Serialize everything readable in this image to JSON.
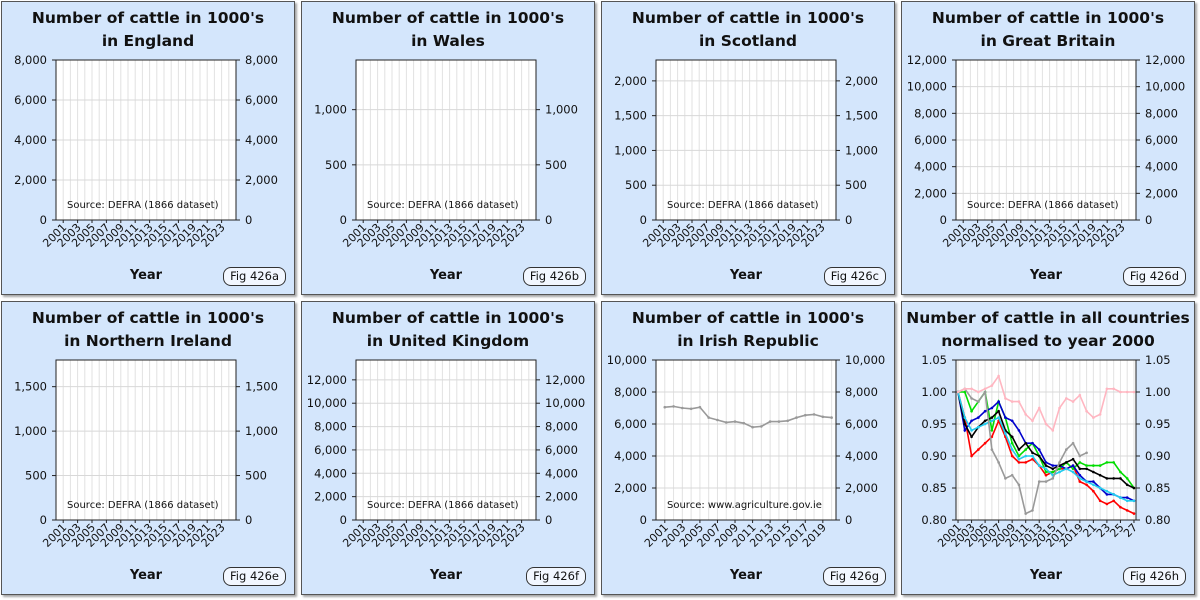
{
  "panels": [
    {
      "title": "Number of cattle in 1000's\nin England",
      "fig": "Fig 426a",
      "source": "Source: DEFRA (1866 dataset)",
      "xlabel": "Year",
      "chart_data": {
        "type": "line",
        "x_ticks": [
          "2001",
          "2003",
          "2005",
          "2007",
          "2009",
          "2011",
          "2013",
          "2015",
          "2017",
          "2019",
          "2021",
          "2023"
        ],
        "xlim": [
          2000,
          2025
        ],
        "ylim": [
          0,
          8000
        ],
        "y_ticks": [
          "0",
          "2,000",
          "4,000",
          "6,000",
          "8,000"
        ],
        "series": []
      }
    },
    {
      "title": "Number of cattle in 1000's\nin Wales",
      "fig": "Fig 426b",
      "source": "Source: DEFRA (1866 dataset)",
      "xlabel": "Year",
      "chart_data": {
        "type": "line",
        "x_ticks": [
          "2001",
          "2003",
          "2005",
          "2007",
          "2009",
          "2011",
          "2013",
          "2015",
          "2017",
          "2019",
          "2021",
          "2023"
        ],
        "xlim": [
          2000,
          2025
        ],
        "ylim": [
          0,
          1450
        ],
        "y_ticks": [
          "0",
          "500",
          "1,000"
        ],
        "series": []
      }
    },
    {
      "title": "Number of cattle in 1000's\nin Scotland",
      "fig": "Fig 426c",
      "source": "Source: DEFRA (1866 dataset)",
      "xlabel": "Year",
      "chart_data": {
        "type": "line",
        "x_ticks": [
          "2001",
          "2003",
          "2005",
          "2007",
          "2009",
          "2011",
          "2013",
          "2015",
          "2017",
          "2019",
          "2021",
          "2023"
        ],
        "xlim": [
          2000,
          2025
        ],
        "ylim": [
          0,
          2300
        ],
        "y_ticks": [
          "0",
          "500",
          "1,000",
          "1,500",
          "2,000"
        ],
        "series": []
      }
    },
    {
      "title": "Number of cattle in 1000's\nin Great Britain",
      "fig": "Fig 426d",
      "source": "Source: DEFRA (1866 dataset)",
      "xlabel": "Year",
      "chart_data": {
        "type": "line",
        "x_ticks": [
          "2001",
          "2003",
          "2005",
          "2007",
          "2009",
          "2011",
          "2013",
          "2015",
          "2017",
          "2019",
          "2021",
          "2023"
        ],
        "xlim": [
          2000,
          2025
        ],
        "ylim": [
          0,
          12000
        ],
        "y_ticks": [
          "0",
          "2,000",
          "4,000",
          "6,000",
          "8,000",
          "10,000",
          "12,000"
        ],
        "series": []
      }
    },
    {
      "title": "Number of cattle in 1000's\nin Northern Ireland",
      "fig": "Fig 426e",
      "source": "Source: DEFRA (1866 dataset)",
      "xlabel": "Year",
      "chart_data": {
        "type": "line",
        "x_ticks": [
          "2001",
          "2003",
          "2005",
          "2007",
          "2009",
          "2011",
          "2013",
          "2015",
          "2017",
          "2019",
          "2021",
          "2023"
        ],
        "xlim": [
          2000,
          2025
        ],
        "ylim": [
          0,
          1800
        ],
        "y_ticks": [
          "0",
          "500",
          "1,000",
          "1,500"
        ],
        "series": []
      }
    },
    {
      "title": "Number of cattle in 1000's\nin United Kingdom",
      "fig": "Fig 426f",
      "source": "Source: DEFRA (1866 dataset)",
      "xlabel": "Year",
      "chart_data": {
        "type": "line",
        "x_ticks": [
          "2001",
          "2003",
          "2005",
          "2007",
          "2009",
          "2011",
          "2013",
          "2015",
          "2017",
          "2019",
          "2021",
          "2023"
        ],
        "xlim": [
          2000,
          2025
        ],
        "ylim": [
          0,
          13700
        ],
        "y_ticks": [
          "0",
          "2,000",
          "4,000",
          "6,000",
          "8,000",
          "10,000",
          "12,000"
        ],
        "series": []
      }
    },
    {
      "title": "Number of cattle in 1000's\nin Irish Republic",
      "fig": "Fig 426g",
      "source": "Source: www.agriculture.gov.ie",
      "xlabel": "Year",
      "chart_data": {
        "type": "line",
        "x_ticks": [
          "2001",
          "2003",
          "2005",
          "2007",
          "2009",
          "2011",
          "2013",
          "2015",
          "2017",
          "2019"
        ],
        "xlim": [
          2000,
          2020.5
        ],
        "ylim": [
          0,
          10000
        ],
        "y_ticks": [
          "0",
          "2,000",
          "4,000",
          "6,000",
          "8,000",
          "10,000"
        ],
        "series": [
          {
            "color": "#999999",
            "x": [
              2001,
              2002,
              2003,
              2004,
              2005,
              2006,
              2007,
              2008,
              2009,
              2010,
              2011,
              2012,
              2013,
              2014,
              2015,
              2016,
              2017,
              2018,
              2019,
              2020
            ],
            "y": [
              7050,
              7100,
              7000,
              6950,
              7050,
              6400,
              6250,
              6100,
              6150,
              6050,
              5800,
              5850,
              6150,
              6150,
              6200,
              6400,
              6550,
              6600,
              6450,
              6400
            ]
          }
        ]
      }
    },
    {
      "title": "Number of cattle in all countries\nnormalised to year 2000",
      "fig": "Fig 426h",
      "source": "",
      "xlabel": "Year",
      "chart_data": {
        "type": "line",
        "x_ticks": [
          "2001",
          "2003",
          "2005",
          "2007",
          "2009",
          "2011",
          "2013",
          "2015",
          "2017",
          "2019",
          "21",
          "23",
          "25",
          "27"
        ],
        "xlim": [
          2000.7,
          2027.3
        ],
        "ylim": [
          0.8,
          1.05
        ],
        "y_ticks": [
          "0.80",
          "0.85",
          "0.90",
          "0.95",
          "1.00",
          "1.05"
        ],
        "series": [
          {
            "color": "#ff0000",
            "x": [
              2001,
              2002,
              2003,
              2004,
              2005,
              2006,
              2007,
              2008,
              2009,
              2010,
              2011,
              2012,
              2013,
              2014,
              2015,
              2016,
              2017,
              2018,
              2019,
              2020,
              2021,
              2022,
              2023,
              2024,
              2025,
              2026,
              2027
            ],
            "y": [
              1.0,
              0.96,
              0.9,
              0.91,
              0.92,
              0.93,
              0.955,
              0.93,
              0.9,
              0.89,
              0.89,
              0.895,
              0.885,
              0.87,
              0.875,
              0.88,
              0.88,
              0.885,
              0.86,
              0.855,
              0.845,
              0.83,
              0.825,
              0.83,
              0.82,
              0.815,
              0.81
            ]
          },
          {
            "color": "#00dd00",
            "x": [
              2001,
              2002,
              2003,
              2004,
              2005,
              2006,
              2007,
              2008,
              2009,
              2010,
              2011,
              2012,
              2013,
              2014,
              2015,
              2016,
              2017,
              2018,
              2019,
              2020,
              2021,
              2022,
              2023,
              2024,
              2025,
              2026,
              2027
            ],
            "y": [
              1.0,
              1.0,
              0.97,
              0.985,
              1.0,
              0.94,
              0.985,
              0.96,
              0.92,
              0.9,
              0.91,
              0.92,
              0.9,
              0.875,
              0.875,
              0.88,
              0.89,
              0.88,
              0.89,
              0.885,
              0.885,
              0.885,
              0.89,
              0.89,
              0.875,
              0.865,
              0.85
            ]
          },
          {
            "color": "#0000cc",
            "x": [
              2001,
              2002,
              2003,
              2004,
              2005,
              2006,
              2007,
              2008,
              2009,
              2010,
              2011,
              2012,
              2013,
              2014,
              2015,
              2016,
              2017,
              2018,
              2019,
              2020,
              2021,
              2022,
              2023,
              2024,
              2025,
              2026,
              2027
            ],
            "y": [
              1.0,
              0.94,
              0.955,
              0.96,
              0.97,
              0.975,
              0.985,
              0.96,
              0.955,
              0.94,
              0.92,
              0.92,
              0.91,
              0.89,
              0.885,
              0.885,
              0.88,
              0.885,
              0.87,
              0.86,
              0.86,
              0.85,
              0.84,
              0.84,
              0.835,
              0.835,
              0.83
            ]
          },
          {
            "color": "#000000",
            "x": [
              2001,
              2002,
              2003,
              2004,
              2005,
              2006,
              2007,
              2008,
              2009,
              2010,
              2011,
              2012,
              2013,
              2014,
              2015,
              2016,
              2017,
              2018,
              2019,
              2020,
              2021,
              2022,
              2023,
              2024,
              2025,
              2026,
              2027
            ],
            "y": [
              1.0,
              0.95,
              0.93,
              0.945,
              0.955,
              0.96,
              0.97,
              0.94,
              0.93,
              0.91,
              0.92,
              0.905,
              0.9,
              0.885,
              0.88,
              0.885,
              0.89,
              0.895,
              0.88,
              0.88,
              0.875,
              0.87,
              0.865,
              0.865,
              0.865,
              0.855,
              0.85
            ]
          },
          {
            "color": "#22ccee",
            "x": [
              2001,
              2002,
              2003,
              2004,
              2005,
              2006,
              2007,
              2008,
              2009,
              2010,
              2011,
              2012,
              2013,
              2014,
              2015,
              2016,
              2017,
              2018,
              2019,
              2020,
              2021,
              2022,
              2023,
              2024,
              2025,
              2026,
              2027
            ],
            "y": [
              1.0,
              0.96,
              0.94,
              0.945,
              0.95,
              0.955,
              0.96,
              0.935,
              0.91,
              0.895,
              0.9,
              0.9,
              0.885,
              0.88,
              0.87,
              0.875,
              0.88,
              0.875,
              0.865,
              0.86,
              0.855,
              0.85,
              0.845,
              0.84,
              0.835,
              0.83,
              0.83
            ]
          },
          {
            "color": "#999999",
            "x": [
              2001,
              2002,
              2003,
              2004,
              2005,
              2006,
              2007,
              2008,
              2009,
              2010,
              2011,
              2012,
              2013,
              2014,
              2015,
              2016,
              2017,
              2018,
              2019,
              2020
            ],
            "y": [
              1.0,
              1.005,
              0.99,
              0.985,
              1.0,
              0.91,
              0.89,
              0.865,
              0.87,
              0.855,
              0.81,
              0.815,
              0.86,
              0.86,
              0.865,
              0.89,
              0.91,
              0.92,
              0.9,
              0.905
            ]
          },
          {
            "color": "#ffb6c1",
            "x": [
              2001,
              2002,
              2003,
              2004,
              2005,
              2006,
              2007,
              2008,
              2009,
              2010,
              2011,
              2012,
              2013,
              2014,
              2015,
              2016,
              2017,
              2018,
              2019,
              2020,
              2021,
              2022,
              2023,
              2024,
              2025,
              2026,
              2027
            ],
            "y": [
              1.0,
              1.005,
              1.005,
              1.0,
              1.005,
              1.01,
              1.025,
              0.99,
              0.985,
              0.985,
              0.965,
              0.955,
              0.975,
              0.95,
              0.94,
              0.975,
              0.99,
              0.985,
              0.995,
              0.97,
              0.96,
              0.965,
              1.005,
              1.005,
              1.0,
              1.0,
              1.0
            ]
          }
        ]
      }
    }
  ]
}
